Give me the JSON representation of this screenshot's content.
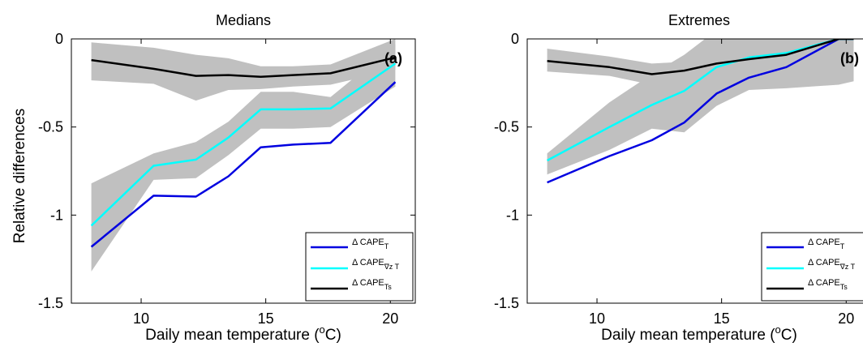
{
  "figure": {
    "ylabel": "Relative differences",
    "xlabel_main": "Daily mean temperature (",
    "xlabel_sup": "o",
    "xlabel_tail": "C)"
  },
  "chart_data": [
    {
      "type": "line",
      "title": "Medians",
      "panel_label": "(a)",
      "xlim": [
        7.2,
        21
      ],
      "ylim": [
        -1.5,
        0
      ],
      "xticks": [
        10,
        15,
        20
      ],
      "yticks": [
        0,
        -0.5,
        -1,
        -1.5
      ],
      "tick_labels_x": [
        "10",
        "15",
        "20"
      ],
      "tick_labels_y": [
        "0",
        "-0.5",
        "-1",
        "-1.5"
      ],
      "grid": false,
      "legend_position": "bottom-right",
      "colors": {
        "T": "#0000e0",
        "Z": "#00ffff",
        "Ts": "#000000",
        "band": "#c0c0c0"
      },
      "legend": [
        {
          "delta": "Δ CAPE",
          "sub": "T"
        },
        {
          "delta": "Δ CAPE",
          "sub": "∇z T"
        },
        {
          "delta": "Δ CAPE",
          "sub": "Ts"
        }
      ],
      "x": [
        8,
        10.5,
        12.2,
        13.5,
        14.8,
        16.1,
        17.6,
        20.2
      ],
      "series": [
        {
          "key": "T",
          "values": [
            -1.18,
            -0.89,
            -0.895,
            -0.78,
            -0.615,
            -0.6,
            -0.59,
            -0.245
          ]
        },
        {
          "key": "Z",
          "values": [
            -1.06,
            -0.72,
            -0.685,
            -0.56,
            -0.4,
            -0.4,
            -0.395,
            -0.14
          ]
        },
        {
          "key": "Ts",
          "values": [
            -0.12,
            -0.17,
            -0.21,
            -0.205,
            -0.215,
            -0.205,
            -0.195,
            -0.105
          ]
        }
      ],
      "bands": [
        {
          "upper": [
            -0.02,
            -0.05,
            -0.09,
            -0.11,
            -0.155,
            -0.155,
            -0.145,
            0.0
          ],
          "lower": [
            -0.235,
            -0.255,
            -0.35,
            -0.29,
            -0.285,
            -0.27,
            -0.26,
            -0.175
          ]
        },
        {
          "upper": [
            -0.82,
            -0.65,
            -0.585,
            -0.47,
            -0.3,
            -0.3,
            -0.33,
            -0.03
          ],
          "lower": [
            -1.32,
            -0.8,
            -0.79,
            -0.66,
            -0.51,
            -0.51,
            -0.5,
            -0.27
          ]
        }
      ]
    },
    {
      "type": "line",
      "title": "Extremes",
      "panel_label": "(b)",
      "xlim": [
        7.2,
        21
      ],
      "ylim": [
        -1.5,
        0
      ],
      "xticks": [
        10,
        15,
        20
      ],
      "yticks": [
        0,
        -0.5,
        -1,
        -1.5
      ],
      "tick_labels_x": [
        "10",
        "15",
        "20"
      ],
      "tick_labels_y": [
        "0",
        "-0.5",
        "-1",
        "-1.5"
      ],
      "grid": false,
      "legend_position": "bottom-right",
      "colors": {
        "T": "#0000e0",
        "Z": "#00ffff",
        "Ts": "#000000",
        "band": "#c0c0c0"
      },
      "legend": [
        {
          "delta": "Δ CAPE",
          "sub": "T"
        },
        {
          "delta": "Δ CAPE",
          "sub": "∇z T"
        },
        {
          "delta": "Δ CAPE",
          "sub": "Ts"
        }
      ],
      "x": [
        8,
        10.5,
        12.2,
        13.5,
        14.8,
        16.1,
        17.6,
        19.7,
        20.3
      ],
      "series": [
        {
          "key": "T",
          "values": [
            -0.815,
            -0.665,
            -0.575,
            -0.475,
            -0.31,
            -0.22,
            -0.16,
            0.0,
            0.0
          ]
        },
        {
          "key": "Z",
          "values": [
            -0.69,
            -0.5,
            -0.375,
            -0.295,
            -0.16,
            -0.105,
            -0.08,
            0.0,
            0.0
          ]
        },
        {
          "key": "Ts",
          "values": [
            -0.125,
            -0.16,
            -0.2,
            -0.18,
            -0.14,
            -0.115,
            -0.09,
            0.0,
            0.0
          ]
        }
      ],
      "bands": [
        {
          "upper": [
            -0.65,
            -0.36,
            -0.2,
            -0.09,
            0.05,
            0.1,
            0.1,
            0.1,
            0.1
          ],
          "lower": [
            -0.77,
            -0.63,
            -0.51,
            -0.53,
            -0.38,
            -0.29,
            -0.28,
            -0.26,
            -0.24
          ]
        },
        {
          "upper": [
            -0.055,
            -0.1,
            -0.14,
            -0.13,
            -0.06,
            -0.05,
            -0.03,
            0.0,
            0.0
          ],
          "lower": [
            -0.185,
            -0.21,
            -0.26,
            -0.23,
            -0.2,
            -0.175,
            -0.14,
            -0.02,
            -0.02
          ]
        }
      ]
    }
  ]
}
